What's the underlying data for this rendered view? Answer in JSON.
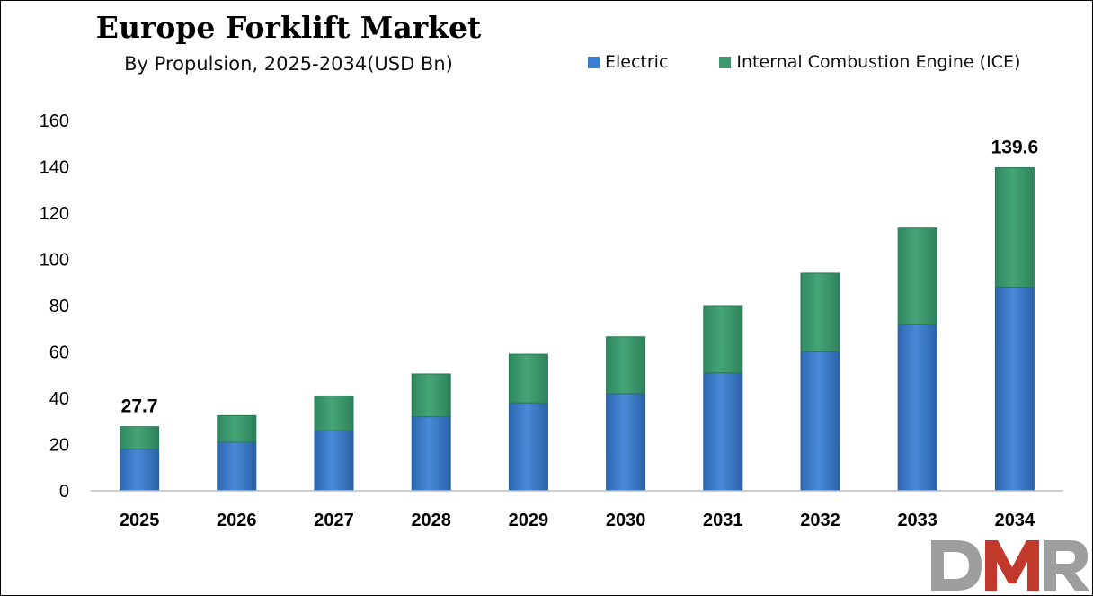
{
  "title": "Europe Forklift Market",
  "subtitle": "By Propulsion, 2025-2034(USD Bn)",
  "logo_text": "DMR",
  "chart_data": {
    "type": "bar",
    "stacked": true,
    "categories": [
      "2025",
      "2026",
      "2027",
      "2028",
      "2029",
      "2030",
      "2031",
      "2032",
      "2033",
      "2034"
    ],
    "series": [
      {
        "name": "Electric",
        "color": "#3a7ccf",
        "values": [
          18,
          21,
          26,
          32,
          38,
          42,
          51,
          60,
          72,
          88
        ]
      },
      {
        "name": "Internal Combustion Engine (ICE)",
        "color": "#3e9a6e",
        "values": [
          9.7,
          11.5,
          15,
          18.5,
          21,
          24.5,
          29,
          34,
          41.5,
          51.6
        ]
      }
    ],
    "totals": [
      27.7,
      32.5,
      41,
      50.5,
      59,
      66.5,
      80,
      94,
      113.5,
      139.6
    ],
    "data_labels": [
      {
        "category": "2025",
        "text": "27.7"
      },
      {
        "category": "2034",
        "text": "139.6"
      }
    ],
    "ylim": [
      0,
      160
    ],
    "yticks": [
      0,
      20,
      40,
      60,
      80,
      100,
      120,
      140,
      160
    ],
    "grid": false,
    "legend": "top-right",
    "xlabel": "",
    "ylabel": ""
  }
}
